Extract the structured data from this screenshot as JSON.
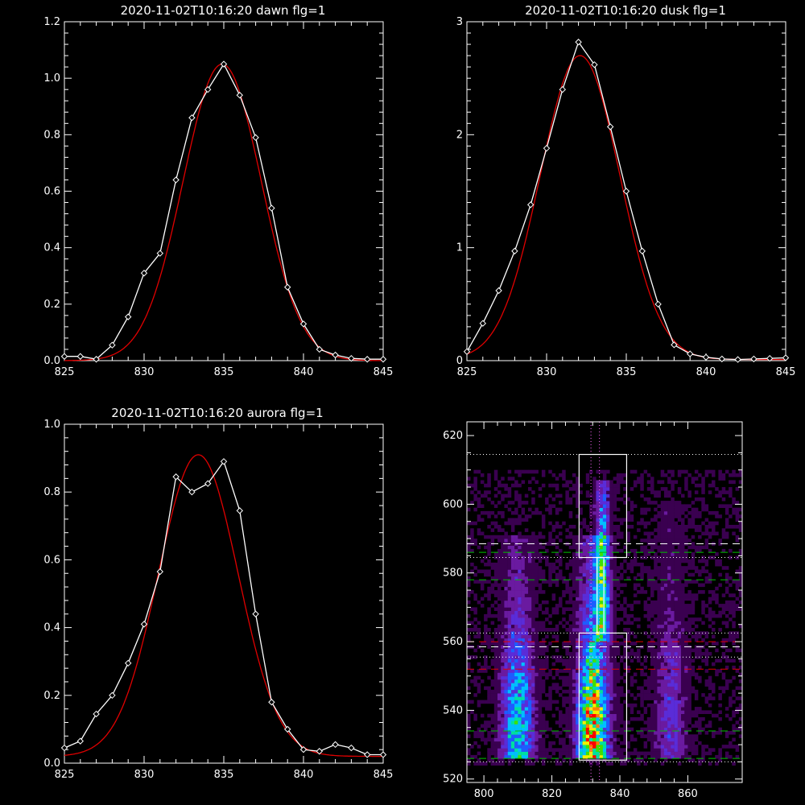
{
  "colors": {
    "background": "#000000",
    "axes": "#ffffff",
    "data_line": "#ffffff",
    "fit_line": "#e00000",
    "box": "#ffffff",
    "dotted_guide": "#ffffff",
    "vertical_guide": "#ff66ff",
    "green_dash": "#00c000",
    "red_dash": "#e00000",
    "white_dash": "#ffffff"
  },
  "chart_data": [
    {
      "type": "line",
      "title": "2020-11-02T10:16:20 dawn flg=1",
      "xlim": [
        825,
        845
      ],
      "ylim": [
        0,
        1.2
      ],
      "xticks": [
        "825",
        "830",
        "835",
        "840",
        "845"
      ],
      "yticks": [
        "0.0",
        "0.2",
        "0.4",
        "0.6",
        "0.8",
        "1.0",
        "1.2"
      ],
      "series": [
        {
          "type": "data",
          "marker": "diamond",
          "x": [
            825,
            826,
            827,
            828,
            829,
            830,
            831,
            832,
            833,
            834,
            835,
            836,
            837,
            838,
            839,
            840,
            841,
            842,
            843,
            844,
            845
          ],
          "y": [
            0.015,
            0.015,
            0.005,
            0.055,
            0.155,
            0.31,
            0.38,
            0.64,
            0.86,
            0.96,
            1.05,
            0.94,
            0.79,
            0.54,
            0.26,
            0.13,
            0.04,
            0.02,
            0.008,
            0.005,
            0.005
          ]
        },
        {
          "type": "fit",
          "model": "gaussian",
          "amplitude": 1.05,
          "center": 834.9,
          "sigma": 2.45,
          "offset": 0.0
        }
      ]
    },
    {
      "type": "line",
      "title": "2020-11-02T10:16:20 dusk flg=1",
      "xlim": [
        825,
        845
      ],
      "ylim": [
        0,
        3
      ],
      "xticks": [
        "825",
        "830",
        "835",
        "840",
        "845"
      ],
      "yticks": [
        "0",
        "1",
        "2",
        "3"
      ],
      "series": [
        {
          "type": "data",
          "marker": "diamond",
          "x": [
            825,
            826,
            827,
            828,
            829,
            830,
            831,
            832,
            833,
            834,
            835,
            836,
            837,
            838,
            839,
            840,
            841,
            842,
            843,
            844,
            845
          ],
          "y": [
            0.08,
            0.33,
            0.62,
            0.97,
            1.38,
            1.88,
            2.4,
            2.82,
            2.62,
            2.07,
            1.5,
            0.97,
            0.5,
            0.14,
            0.06,
            0.03,
            0.015,
            0.01,
            0.015,
            0.02,
            0.025
          ]
        },
        {
          "type": "fit",
          "model": "gaussian",
          "amplitude": 2.69,
          "center": 832.1,
          "sigma": 2.5,
          "offset": 0.01
        }
      ]
    },
    {
      "type": "line",
      "title": "2020-11-02T10:16:20 aurora flg=1",
      "xlim": [
        825,
        845
      ],
      "ylim": [
        0,
        1.0
      ],
      "xticks": [
        "825",
        "830",
        "835",
        "840",
        "845"
      ],
      "yticks": [
        "0.0",
        "0.2",
        "0.4",
        "0.6",
        "0.8",
        "1.0"
      ],
      "series": [
        {
          "type": "data",
          "marker": "diamond",
          "x": [
            825,
            826,
            827,
            828,
            829,
            830,
            831,
            832,
            833,
            834,
            835,
            836,
            837,
            838,
            839,
            840,
            841,
            842,
            843,
            844,
            845
          ],
          "y": [
            0.045,
            0.065,
            0.145,
            0.2,
            0.295,
            0.41,
            0.565,
            0.845,
            0.8,
            0.825,
            0.89,
            0.745,
            0.44,
            0.18,
            0.1,
            0.04,
            0.035,
            0.055,
            0.045,
            0.025,
            0.025
          ]
        },
        {
          "type": "fit",
          "model": "gaussian",
          "amplitude": 0.89,
          "center": 833.4,
          "sigma": 2.5,
          "offset": 0.02
        }
      ]
    },
    {
      "type": "heatmap",
      "title": "",
      "xlim": [
        795,
        876
      ],
      "ylim": [
        519,
        624
      ],
      "xticks": [
        "800",
        "820",
        "840",
        "860"
      ],
      "yticks": [
        "520",
        "540",
        "560",
        "580",
        "600",
        "620"
      ],
      "colormap": [
        "#000000",
        "#3a0050",
        "#6a1aa0",
        "#5a2cd8",
        "#1e5cff",
        "#00bfff",
        "#00e0a0",
        "#40e000",
        "#f0f000",
        "#ff8000",
        "#ff0000"
      ],
      "emission_columns": [
        {
          "x_center": 810,
          "x_width": 3.2,
          "y_from": 526,
          "y_to": 590,
          "peak": 0.6,
          "peak_y": 533
        },
        {
          "x_center": 832,
          "x_width": 3.0,
          "y_from": 526,
          "y_to": 590,
          "peak": 1.0,
          "peak_y": 531
        },
        {
          "x_center": 835,
          "x_width": 1.4,
          "y_from": 560,
          "y_to": 606,
          "peak": 0.55,
          "peak_y": 580
        },
        {
          "x_center": 855,
          "x_width": 3.0,
          "y_from": 526,
          "y_to": 600,
          "peak": 0.3,
          "peak_y": 535
        }
      ],
      "boxes": [
        {
          "x": [
            828,
            842
          ],
          "y": [
            584.5,
            614.5
          ]
        },
        {
          "x": [
            828,
            842
          ],
          "y": [
            525.5,
            562.5
          ]
        }
      ],
      "notch": {
        "x": [
          833.3,
          835.3
        ],
        "y": [
          562.5,
          584.5
        ]
      },
      "horizontal_lines": [
        {
          "y": 614.5,
          "style": "dotted",
          "color": "white"
        },
        {
          "y": 588.5,
          "style": "dashed",
          "color": "white"
        },
        {
          "y": 586.0,
          "style": "dashed",
          "color": "green"
        },
        {
          "y": 584.5,
          "style": "dotted",
          "color": "white"
        },
        {
          "y": 578.0,
          "style": "dashed",
          "color": "green"
        },
        {
          "y": 562.5,
          "style": "dotted",
          "color": "white"
        },
        {
          "y": 560.0,
          "style": "dashed",
          "color": "red"
        },
        {
          "y": 558.5,
          "style": "dashed",
          "color": "white"
        },
        {
          "y": 555.5,
          "style": "dotted",
          "color": "white"
        },
        {
          "y": 552.0,
          "style": "dashed",
          "color": "red"
        },
        {
          "y": 534.0,
          "style": "dashed",
          "color": "green"
        },
        {
          "y": 526.0,
          "style": "dashed",
          "color": "green"
        },
        {
          "y": 525.0,
          "style": "dotted",
          "color": "white"
        }
      ],
      "vertical_lines": [
        {
          "x": 831.5,
          "style": "dotted",
          "color": "magenta"
        },
        {
          "x": 834.0,
          "style": "dotted",
          "color": "magenta"
        }
      ]
    }
  ]
}
